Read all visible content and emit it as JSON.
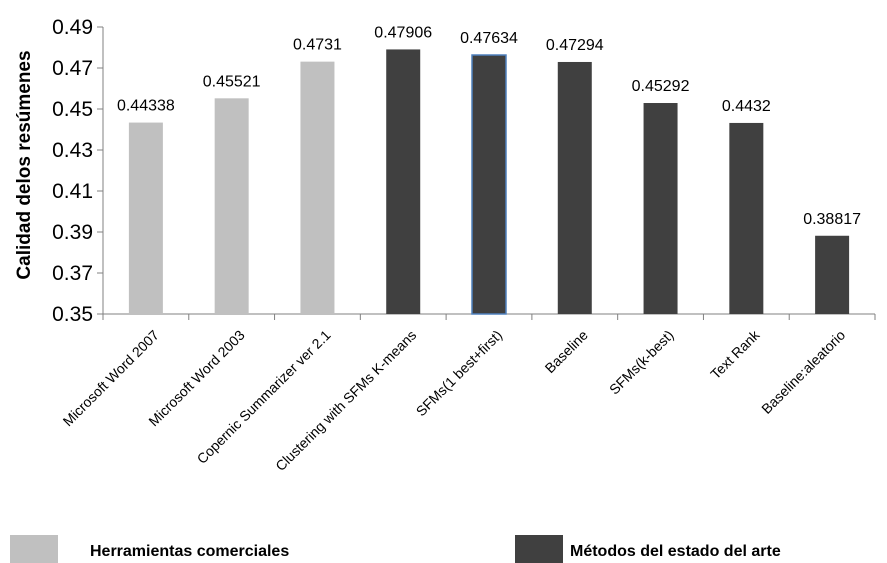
{
  "chart_data": {
    "type": "bar",
    "ylabel": "Calidad delos resúmenes",
    "ylim": [
      0.35,
      0.49
    ],
    "yticks": [
      "0.35",
      "0.37",
      "0.39",
      "0.41",
      "0.43",
      "0.45",
      "0.47",
      "0.49"
    ],
    "grid": false,
    "legend_position": "bottom",
    "categories": [
      "Microsoft Word 2007",
      "Microsoft Word 2003",
      "Copernic Summarizer ver 2.1",
      "Clustering with SFMs K-means",
      "SFMs(1 best+first)",
      "Baseline",
      "SFMs(k-best)",
      "Text Rank",
      "Baseline:aleatorio"
    ],
    "values": [
      0.44338,
      0.45521,
      0.4731,
      0.47906,
      0.47634,
      0.47294,
      0.45292,
      0.4432,
      0.38817
    ],
    "labels": [
      "0.44338",
      "0.45521",
      "0.4731",
      "0.47906",
      "0.47634",
      "0.47294",
      "0.45292",
      "0.4432",
      "0.38817"
    ],
    "group": [
      "commercial",
      "commercial",
      "commercial",
      "sota",
      "sota",
      "sota",
      "sota",
      "sota",
      "sota"
    ],
    "legend": [
      {
        "key": "commercial",
        "label": "Herramientas comerciales",
        "color": "#c0c0c0"
      },
      {
        "key": "sota",
        "label": "Métodos del estado del arte",
        "color": "#404040"
      }
    ],
    "highlight_border_color": "#4f81bd"
  }
}
